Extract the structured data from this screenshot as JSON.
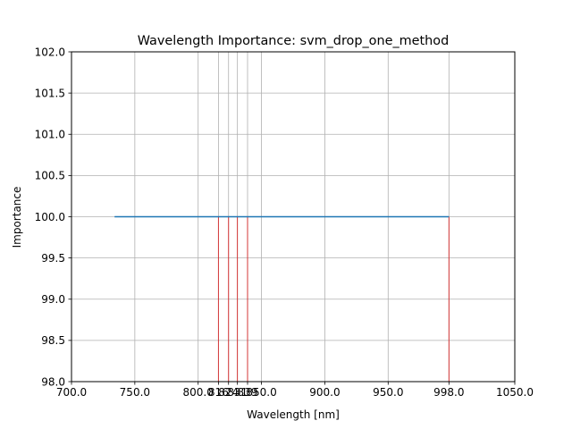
{
  "chart_data": {
    "type": "line",
    "title": "Wavelength Importance: svm_drop_one_method",
    "xlabel": "Wavelength [nm]",
    "ylabel": "Importance",
    "xlim": [
      700,
      1050
    ],
    "ylim": [
      98,
      102
    ],
    "grid": true,
    "x_ticks": [
      700,
      750,
      800,
      850,
      900,
      950,
      998,
      1050
    ],
    "x_tick_labels": [
      "700.0",
      "750.0",
      "800.0",
      "850.0",
      "900.0",
      "950.0",
      "998.0",
      "1050.0"
    ],
    "extra_x_ticks": [
      816,
      824,
      831,
      839
    ],
    "y_ticks": [
      98,
      98.5,
      99,
      99.5,
      100,
      100.5,
      101,
      101.5,
      102
    ],
    "y_tick_labels": [
      "98.0",
      "98.5",
      "99.0",
      "99.5",
      "100.0",
      "100.5",
      "101.0",
      "101.5",
      "102.0"
    ],
    "series": [
      {
        "x": [
          734,
          998
        ],
        "y": [
          100,
          100
        ],
        "color": "#1f77b4"
      }
    ],
    "marker_lines": {
      "x": [
        816,
        824,
        831,
        839,
        998
      ],
      "y_top": 100,
      "color": "#d62728"
    }
  }
}
